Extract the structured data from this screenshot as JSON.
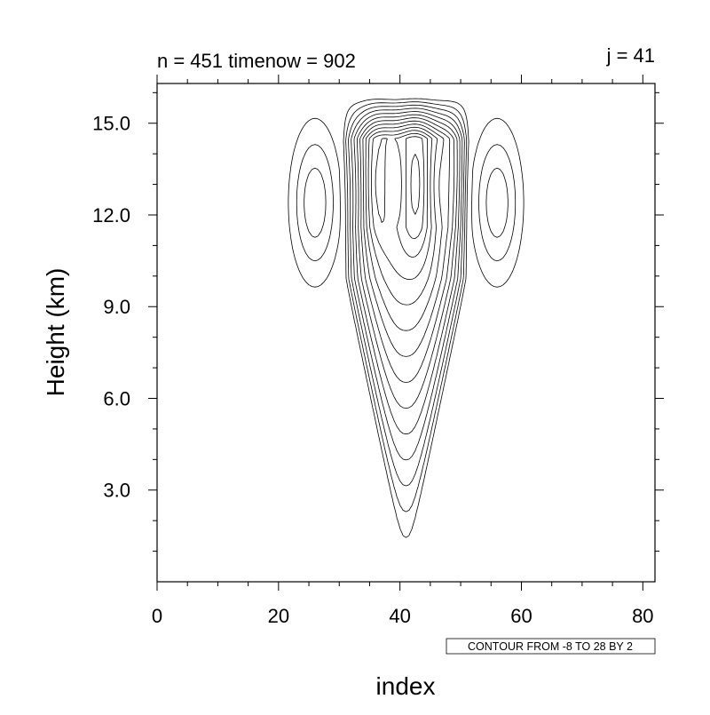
{
  "chart_data": {
    "type": "contour",
    "title_left": "n = 451  timenow = 902",
    "title_right": "j = 41",
    "xlabel": "index",
    "ylabel": "Height (km)",
    "xlim": [
      0,
      82
    ],
    "ylim": [
      0,
      16.3
    ],
    "x_ticks": [
      0,
      20,
      40,
      60,
      80
    ],
    "x_tick_labels": [
      "0",
      "20",
      "40",
      "60",
      "80"
    ],
    "y_ticks": [
      3,
      6,
      9,
      12,
      15
    ],
    "y_tick_labels": [
      "3.0",
      "6.0",
      "9.0",
      "12.0",
      "15.0"
    ],
    "contour_info": "CONTOUR FROM -8 TO 28 BY 2",
    "contour_levels": {
      "min": -8,
      "max": 28,
      "step": 2
    },
    "negative_contours": "dashed",
    "positive_contours": "solid",
    "features": [
      {
        "name": "updraft-plume",
        "center_x": 41,
        "base_height": 0.6,
        "top_height": 15.9,
        "x_range_at_top": [
          30,
          51
        ]
      },
      {
        "name": "left-downdraft",
        "center_x": 27,
        "height_range": [
          9.5,
          15.2
        ]
      },
      {
        "name": "right-downdraft",
        "center_x": 55,
        "height_range": [
          9.5,
          15.2
        ]
      }
    ],
    "grid": false
  }
}
